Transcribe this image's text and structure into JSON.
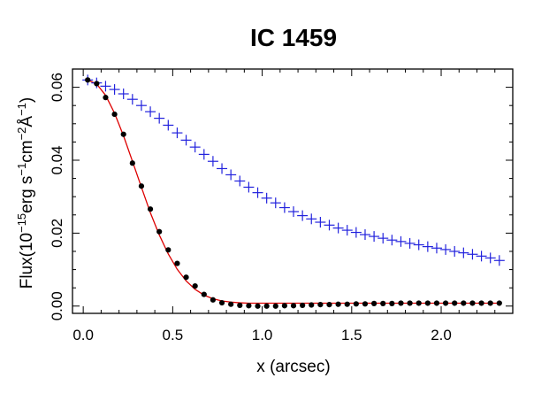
{
  "chart_data": {
    "type": "scatter",
    "title": "IC 1459",
    "xlabel": "x (arcsec)",
    "ylabel": {
      "prefix": "Flux(10",
      "exp1": "−15",
      "mid1": "erg s",
      "exp2": "−1",
      "mid2": "cm",
      "exp3": "−2",
      "unit": "Å",
      "exp4": "−1",
      "suffix": ")"
    },
    "xlim": [
      -0.06,
      2.4
    ],
    "ylim": [
      -0.002,
      0.065
    ],
    "xticks": [
      0.0,
      0.5,
      1.0,
      1.5,
      2.0
    ],
    "xtick_labels": [
      "0.0",
      "0.5",
      "1.0",
      "1.5",
      "2.0"
    ],
    "yticks": [
      0.0,
      0.02,
      0.04,
      0.06
    ],
    "ytick_labels": [
      "0.00",
      "0.02",
      "0.04",
      "0.06"
    ],
    "x": [
      0.025,
      0.075,
      0.125,
      0.175,
      0.225,
      0.275,
      0.325,
      0.375,
      0.425,
      0.475,
      0.525,
      0.575,
      0.625,
      0.675,
      0.725,
      0.775,
      0.825,
      0.875,
      0.925,
      0.975,
      1.025,
      1.075,
      1.125,
      1.175,
      1.225,
      1.275,
      1.325,
      1.375,
      1.425,
      1.475,
      1.525,
      1.575,
      1.625,
      1.675,
      1.725,
      1.775,
      1.825,
      1.875,
      1.925,
      1.975,
      2.025,
      2.075,
      2.125,
      2.175,
      2.225,
      2.275,
      2.325
    ],
    "series": [
      {
        "name": "blue-plus",
        "marker": "plus",
        "color": "#2222dd",
        "values": [
          0.062,
          0.0612,
          0.0603,
          0.0594,
          0.0582,
          0.0567,
          0.055,
          0.0533,
          0.0515,
          0.0496,
          0.0475,
          0.0455,
          0.0436,
          0.0416,
          0.0397,
          0.0377,
          0.036,
          0.0343,
          0.0326,
          0.0311,
          0.0296,
          0.0283,
          0.027,
          0.0259,
          0.0248,
          0.0239,
          0.023,
          0.0222,
          0.0214,
          0.0208,
          0.0202,
          0.0196,
          0.0191,
          0.0186,
          0.0181,
          0.0177,
          0.0172,
          0.0168,
          0.0163,
          0.0159,
          0.0155,
          0.015,
          0.0146,
          0.0142,
          0.0137,
          0.0132,
          0.0125
        ]
      },
      {
        "name": "black-dots",
        "marker": "dot",
        "color": "#000000",
        "values": [
          0.062,
          0.061,
          0.0572,
          0.0526,
          0.0471,
          0.0392,
          0.0329,
          0.0266,
          0.0204,
          0.0154,
          0.0117,
          0.0079,
          0.0055,
          0.0032,
          0.0017,
          0.0009,
          0.0005,
          0.0002,
          0.0001,
          0.0,
          0.0,
          0.0,
          0.0001,
          0.0001,
          0.0002,
          0.0003,
          0.0004,
          0.0004,
          0.0005,
          0.0005,
          0.0006,
          0.0006,
          0.0007,
          0.0007,
          0.0007,
          0.0008,
          0.0008,
          0.0008,
          0.0008,
          0.0008,
          0.0008,
          0.0008,
          0.0008,
          0.0008,
          0.0008,
          0.0008,
          0.0008
        ]
      },
      {
        "name": "red-model",
        "marker": "line",
        "color": "#dd0000",
        "values": [
          0.062,
          0.0609,
          0.0578,
          0.0529,
          0.0467,
          0.0397,
          0.0326,
          0.0256,
          0.0195,
          0.0143,
          0.0101,
          0.0069,
          0.0046,
          0.003,
          0.002,
          0.0014,
          0.0011,
          0.0009,
          0.0008,
          0.0008,
          0.0008,
          0.0008,
          0.0008,
          0.0008,
          0.0008,
          0.0008,
          0.0008,
          0.0008,
          0.0008,
          0.0008,
          0.0008,
          0.0008,
          0.0008,
          0.0008,
          0.0008,
          0.0008,
          0.0008,
          0.0008,
          0.0008,
          0.0008,
          0.0008,
          0.0008,
          0.0008,
          0.0008,
          0.0008,
          0.0008,
          0.0008
        ]
      }
    ]
  }
}
